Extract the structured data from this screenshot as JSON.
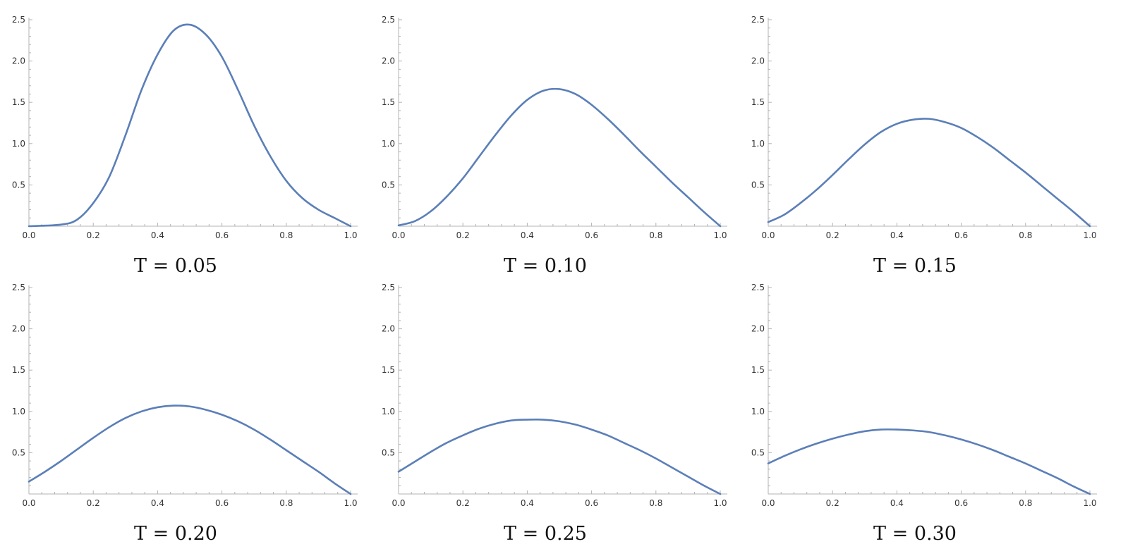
{
  "chart_data": [
    {
      "type": "line",
      "caption": "T = 0.05",
      "xlim": [
        0,
        1
      ],
      "ylim": [
        0,
        2.5
      ],
      "x_ticks": [
        "0.0",
        "0.2",
        "0.4",
        "0.6",
        "0.8",
        "1.0"
      ],
      "y_ticks": [
        "0.5",
        "1.0",
        "1.5",
        "2.0",
        "2.5"
      ],
      "grid": false,
      "series": [
        {
          "color": "#5b7fb8",
          "x": [
            0,
            0.1,
            0.15,
            0.2,
            0.25,
            0.3,
            0.35,
            0.4,
            0.45,
            0.5,
            0.55,
            0.6,
            0.65,
            0.7,
            0.75,
            0.8,
            0.85,
            0.9,
            0.95,
            1.0
          ],
          "y": [
            0,
            0.02,
            0.08,
            0.28,
            0.6,
            1.1,
            1.65,
            2.08,
            2.37,
            2.44,
            2.32,
            2.05,
            1.65,
            1.22,
            0.85,
            0.55,
            0.34,
            0.2,
            0.1,
            0
          ]
        }
      ]
    },
    {
      "type": "line",
      "caption": "T = 0.10",
      "xlim": [
        0,
        1
      ],
      "ylim": [
        0,
        2.5
      ],
      "x_ticks": [
        "0.0",
        "0.2",
        "0.4",
        "0.6",
        "0.8",
        "1.0"
      ],
      "y_ticks": [
        "0.5",
        "1.0",
        "1.5",
        "2.0",
        "2.5"
      ],
      "grid": false,
      "series": [
        {
          "color": "#5b7fb8",
          "x": [
            0,
            0.05,
            0.1,
            0.15,
            0.2,
            0.25,
            0.3,
            0.35,
            0.4,
            0.45,
            0.5,
            0.55,
            0.6,
            0.65,
            0.7,
            0.75,
            0.8,
            0.85,
            0.9,
            0.95,
            1.0
          ],
          "y": [
            0.01,
            0.06,
            0.18,
            0.36,
            0.58,
            0.84,
            1.1,
            1.34,
            1.53,
            1.64,
            1.66,
            1.6,
            1.47,
            1.3,
            1.11,
            0.91,
            0.72,
            0.53,
            0.35,
            0.17,
            0
          ]
        }
      ]
    },
    {
      "type": "line",
      "caption": "T = 0.15",
      "xlim": [
        0,
        1
      ],
      "ylim": [
        0,
        2.5
      ],
      "x_ticks": [
        "0.0",
        "0.2",
        "0.4",
        "0.6",
        "0.8",
        "1.0"
      ],
      "y_ticks": [
        "0.5",
        "1.0",
        "1.5",
        "2.0",
        "2.5"
      ],
      "grid": false,
      "series": [
        {
          "color": "#5b7fb8",
          "x": [
            0,
            0.05,
            0.1,
            0.15,
            0.2,
            0.25,
            0.3,
            0.35,
            0.4,
            0.45,
            0.5,
            0.55,
            0.6,
            0.65,
            0.7,
            0.75,
            0.8,
            0.85,
            0.9,
            0.95,
            1.0
          ],
          "y": [
            0.05,
            0.14,
            0.28,
            0.44,
            0.62,
            0.81,
            0.99,
            1.14,
            1.24,
            1.29,
            1.3,
            1.26,
            1.19,
            1.08,
            0.95,
            0.8,
            0.65,
            0.49,
            0.33,
            0.17,
            0
          ]
        }
      ]
    },
    {
      "type": "line",
      "caption": "T = 0.20",
      "xlim": [
        0,
        1
      ],
      "ylim": [
        0,
        2.5
      ],
      "x_ticks": [
        "0.0",
        "0.2",
        "0.4",
        "0.6",
        "0.8",
        "1.0"
      ],
      "y_ticks": [
        "0.5",
        "1.0",
        "1.5",
        "2.0",
        "2.5"
      ],
      "grid": false,
      "series": [
        {
          "color": "#5b7fb8",
          "x": [
            0,
            0.05,
            0.1,
            0.15,
            0.2,
            0.25,
            0.3,
            0.35,
            0.4,
            0.45,
            0.5,
            0.55,
            0.6,
            0.65,
            0.7,
            0.75,
            0.8,
            0.85,
            0.9,
            0.95,
            1.0
          ],
          "y": [
            0.15,
            0.27,
            0.4,
            0.54,
            0.68,
            0.81,
            0.92,
            1.0,
            1.05,
            1.07,
            1.06,
            1.02,
            0.96,
            0.88,
            0.78,
            0.66,
            0.53,
            0.4,
            0.27,
            0.13,
            0
          ]
        }
      ]
    },
    {
      "type": "line",
      "caption": "T = 0.25",
      "xlim": [
        0,
        1
      ],
      "ylim": [
        0,
        2.5
      ],
      "x_ticks": [
        "0.0",
        "0.2",
        "0.4",
        "0.6",
        "0.8",
        "1.0"
      ],
      "y_ticks": [
        "0.5",
        "1.0",
        "1.5",
        "2.0",
        "2.5"
      ],
      "grid": false,
      "series": [
        {
          "color": "#5b7fb8",
          "x": [
            0,
            0.05,
            0.1,
            0.15,
            0.2,
            0.25,
            0.3,
            0.35,
            0.4,
            0.45,
            0.5,
            0.55,
            0.6,
            0.65,
            0.7,
            0.75,
            0.8,
            0.85,
            0.9,
            0.95,
            1.0
          ],
          "y": [
            0.27,
            0.39,
            0.51,
            0.62,
            0.71,
            0.79,
            0.85,
            0.89,
            0.9,
            0.9,
            0.88,
            0.84,
            0.78,
            0.71,
            0.62,
            0.53,
            0.43,
            0.32,
            0.21,
            0.1,
            0
          ]
        }
      ]
    },
    {
      "type": "line",
      "caption": "T = 0.30",
      "xlim": [
        0,
        1
      ],
      "ylim": [
        0,
        2.5
      ],
      "x_ticks": [
        "0.0",
        "0.2",
        "0.4",
        "0.6",
        "0.8",
        "1.0"
      ],
      "y_ticks": [
        "0.5",
        "1.0",
        "1.5",
        "2.0",
        "2.5"
      ],
      "grid": false,
      "series": [
        {
          "color": "#5b7fb8",
          "x": [
            0,
            0.05,
            0.1,
            0.15,
            0.2,
            0.25,
            0.3,
            0.35,
            0.4,
            0.45,
            0.5,
            0.55,
            0.6,
            0.65,
            0.7,
            0.75,
            0.8,
            0.85,
            0.9,
            0.95,
            1.0
          ],
          "y": [
            0.37,
            0.46,
            0.54,
            0.61,
            0.67,
            0.72,
            0.76,
            0.78,
            0.78,
            0.77,
            0.75,
            0.71,
            0.66,
            0.6,
            0.53,
            0.45,
            0.37,
            0.28,
            0.19,
            0.09,
            0
          ]
        }
      ]
    }
  ]
}
